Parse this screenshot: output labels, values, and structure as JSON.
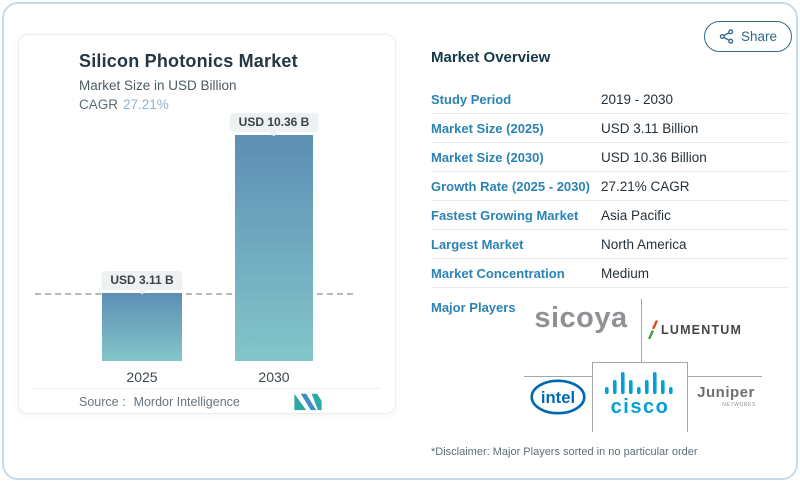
{
  "share": {
    "label": "Share"
  },
  "chart": {
    "title": "Silicon Photonics Market",
    "subtitle": "Market Size in USD Billion",
    "cagr_label": "CAGR",
    "cagr_value": "27.21%",
    "source_label": "Source :",
    "source_value": "Mordor Intelligence"
  },
  "chart_data": {
    "type": "bar",
    "title": "Silicon Photonics Market",
    "subtitle": "Market Size in USD Billion",
    "categories": [
      "2025",
      "2030"
    ],
    "values": [
      3.11,
      10.36
    ],
    "bar_labels": [
      "USD 3.11 B",
      "USD 10.36 B"
    ],
    "unit": "USD Billion",
    "cagr": "27.21%",
    "ylim": [
      0,
      10.36
    ],
    "grid": "single dashed horizontal reference line at first bar value (3.11)",
    "legend": "none",
    "bar_gradient_top": "#5d8eb4",
    "bar_gradient_bottom": "#83c6ca"
  },
  "overview": {
    "title": "Market Overview",
    "rows": [
      {
        "label": "Study Period",
        "value": "2019 - 2030"
      },
      {
        "label": "Market Size (2025)",
        "value": "USD 3.11 Billion"
      },
      {
        "label": "Market Size (2030)",
        "value": "USD 10.36 Billion"
      },
      {
        "label": "Growth Rate (2025 - 2030)",
        "value": "27.21% CAGR"
      },
      {
        "label": "Fastest Growing Market",
        "value": "Asia Pacific"
      },
      {
        "label": "Largest Market",
        "value": "North America"
      },
      {
        "label": "Market Concentration",
        "value": "Medium"
      }
    ],
    "major_players_label": "Major Players",
    "players": {
      "sicoya": "sicoya",
      "lumentum": "LUMENTUM",
      "cisco": "cisco",
      "juniper": "Juniper",
      "juniper_sub": "NETWORKS",
      "intel": "intel"
    },
    "disclaimer": "*Disclaimer: Major Players sorted in no particular order"
  },
  "colors": {
    "accent_blue": "#2a83b4",
    "cagr_value": "#8fb3cd",
    "cisco_blue": "#049fd9",
    "intel_blue": "#0068b5",
    "frame_border": "#c6dcea"
  }
}
